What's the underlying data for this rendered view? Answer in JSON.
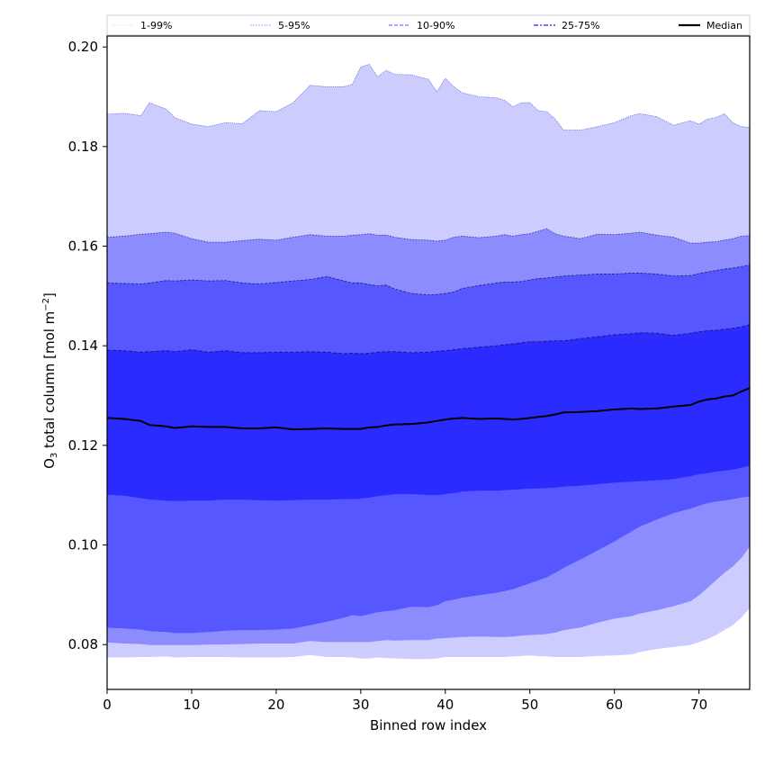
{
  "chart_data": {
    "type": "area",
    "title": "",
    "xlabel": "Binned row index",
    "ylabel_main": "O",
    "ylabel_sub": "3",
    "ylabel_rest": " total column [mol m",
    "ylabel_sup": "−2",
    "ylabel_end": "]",
    "xlim": [
      0,
      76
    ],
    "ylim": [
      0.071,
      0.2022
    ],
    "xticks": [
      0,
      10,
      20,
      30,
      40,
      50,
      60,
      70
    ],
    "xtick_labels": [
      "0",
      "10",
      "20",
      "30",
      "40",
      "50",
      "60",
      "70"
    ],
    "yticks": [
      0.08,
      0.1,
      0.12,
      0.14,
      0.16,
      0.18,
      0.2
    ],
    "ytick_labels": [
      "0.08",
      "0.10",
      "0.12",
      "0.14",
      "0.16",
      "0.18",
      "0.20"
    ],
    "grid": false,
    "legend_placement": "top, above axes, single row",
    "legend": [
      {
        "label": "1-99%",
        "color": "#ccccff",
        "style": "dotted"
      },
      {
        "label": "5-95%",
        "color": "#8c8cff",
        "style": "dashed-fine"
      },
      {
        "label": "10-90%",
        "color": "#7a7aff",
        "style": "dashed"
      },
      {
        "label": "25-75%",
        "color": "#4545ff",
        "style": "dashdot"
      },
      {
        "label": "Median",
        "color": "#000000",
        "style": "solid"
      }
    ],
    "x": [
      0,
      2,
      4,
      5,
      7,
      8,
      10,
      12,
      14,
      16,
      18,
      20,
      22,
      24,
      26,
      28,
      29,
      30,
      31,
      32,
      33,
      34,
      36,
      38,
      39,
      40,
      41,
      42,
      44,
      46,
      47,
      48,
      49,
      50,
      51,
      52,
      53,
      54,
      56,
      58,
      60,
      62,
      63,
      65,
      67,
      69,
      70,
      71,
      72,
      73,
      74,
      75,
      76
    ],
    "bands": [
      {
        "name": "1-99%",
        "fill": "#ccccff",
        "edge": "#4a4ad6",
        "upper": [
          0.1865,
          0.1867,
          0.1862,
          0.1888,
          0.1875,
          0.1858,
          0.1845,
          0.184,
          0.1848,
          0.1846,
          0.1872,
          0.187,
          0.1888,
          0.1923,
          0.192,
          0.192,
          0.1925,
          0.196,
          0.1965,
          0.194,
          0.1953,
          0.1945,
          0.1944,
          0.1935,
          0.191,
          0.1937,
          0.192,
          0.1908,
          0.19,
          0.1898,
          0.1893,
          0.188,
          0.1888,
          0.1888,
          0.1872,
          0.187,
          0.1855,
          0.1833,
          0.1833,
          0.184,
          0.1848,
          0.1862,
          0.1866,
          0.186,
          0.1843,
          0.1852,
          0.1845,
          0.1855,
          0.1858,
          0.1866,
          0.1848,
          0.184,
          0.1838
        ],
        "lower": [
          0.0775,
          0.0775,
          0.0776,
          0.0776,
          0.0777,
          0.0775,
          0.0776,
          0.0776,
          0.0776,
          0.0775,
          0.0775,
          0.0775,
          0.0776,
          0.078,
          0.0776,
          0.0776,
          0.0775,
          0.0773,
          0.0773,
          0.0775,
          0.0774,
          0.0773,
          0.0772,
          0.0772,
          0.0773,
          0.0776,
          0.0776,
          0.0776,
          0.0776,
          0.0776,
          0.0776,
          0.0777,
          0.0778,
          0.0779,
          0.0778,
          0.0777,
          0.0776,
          0.0776,
          0.0776,
          0.0778,
          0.0779,
          0.0781,
          0.0786,
          0.0792,
          0.0796,
          0.08,
          0.0806,
          0.0812,
          0.082,
          0.083,
          0.084,
          0.0855,
          0.0875
        ]
      },
      {
        "name": "5-95%",
        "fill": "#8c8cff",
        "edge": "#2a2ab0",
        "upper": [
          0.1618,
          0.162,
          0.1624,
          0.1625,
          0.1628,
          0.1626,
          0.1615,
          0.1608,
          0.1608,
          0.1611,
          0.1614,
          0.1612,
          0.1618,
          0.1623,
          0.162,
          0.162,
          0.1622,
          0.1623,
          0.1625,
          0.1622,
          0.1622,
          0.1618,
          0.1613,
          0.1612,
          0.161,
          0.1612,
          0.1618,
          0.162,
          0.1617,
          0.162,
          0.1623,
          0.162,
          0.1623,
          0.1625,
          0.163,
          0.1635,
          0.1625,
          0.162,
          0.1615,
          0.1624,
          0.1623,
          0.1626,
          0.1628,
          0.1622,
          0.1618,
          0.1606,
          0.1606,
          0.1608,
          0.1609,
          0.1612,
          0.1615,
          0.162,
          0.1621
        ],
        "lower": [
          0.0805,
          0.0803,
          0.0802,
          0.08,
          0.08,
          0.08,
          0.08,
          0.0801,
          0.0801,
          0.0802,
          0.0803,
          0.0803,
          0.0803,
          0.0808,
          0.0806,
          0.0806,
          0.0806,
          0.0806,
          0.0806,
          0.0808,
          0.081,
          0.0809,
          0.081,
          0.081,
          0.0813,
          0.0814,
          0.0815,
          0.0816,
          0.0817,
          0.0816,
          0.0816,
          0.0817,
          0.0819,
          0.082,
          0.0821,
          0.0822,
          0.0825,
          0.083,
          0.0835,
          0.0845,
          0.0853,
          0.0858,
          0.0863,
          0.087,
          0.0878,
          0.0888,
          0.09,
          0.0915,
          0.093,
          0.0945,
          0.0958,
          0.0975,
          0.0998
        ]
      },
      {
        "name": "10-90%",
        "fill": "#5757ff",
        "edge": "#1a1a80",
        "upper": [
          0.1526,
          0.1525,
          0.1524,
          0.1526,
          0.1531,
          0.153,
          0.1532,
          0.153,
          0.1531,
          0.1526,
          0.1524,
          0.1527,
          0.153,
          0.1533,
          0.1539,
          0.153,
          0.1526,
          0.1526,
          0.1523,
          0.152,
          0.1522,
          0.1514,
          0.1505,
          0.1502,
          0.1503,
          0.1505,
          0.1508,
          0.1515,
          0.1521,
          0.1526,
          0.1528,
          0.1528,
          0.1529,
          0.1532,
          0.1535,
          0.1536,
          0.1538,
          0.154,
          0.1542,
          0.1544,
          0.1544,
          0.1546,
          0.1546,
          0.1544,
          0.154,
          0.1541,
          0.1545,
          0.1548,
          0.1551,
          0.1554,
          0.1556,
          0.1559,
          0.1562
        ],
        "lower": [
          0.0835,
          0.0833,
          0.0831,
          0.0828,
          0.0826,
          0.0824,
          0.0824,
          0.0826,
          0.0829,
          0.083,
          0.083,
          0.0831,
          0.0833,
          0.084,
          0.0847,
          0.0855,
          0.086,
          0.0858,
          0.0862,
          0.0866,
          0.0868,
          0.087,
          0.0877,
          0.0876,
          0.088,
          0.0888,
          0.0891,
          0.0895,
          0.09,
          0.0905,
          0.0908,
          0.0912,
          0.0918,
          0.0924,
          0.093,
          0.0936,
          0.0945,
          0.0955,
          0.0972,
          0.099,
          0.1008,
          0.1028,
          0.1038,
          0.1052,
          0.1065,
          0.1074,
          0.108,
          0.1085,
          0.1088,
          0.109,
          0.1093,
          0.1096,
          0.1098
        ]
      },
      {
        "name": "25-75%",
        "fill": "#2b2bff",
        "edge": "#12127a",
        "upper": [
          0.1391,
          0.139,
          0.1387,
          0.1388,
          0.139,
          0.1388,
          0.1392,
          0.1387,
          0.139,
          0.1386,
          0.1386,
          0.1387,
          0.1387,
          0.1388,
          0.1387,
          0.1384,
          0.1385,
          0.1384,
          0.1385,
          0.1387,
          0.1388,
          0.1388,
          0.1386,
          0.1387,
          0.1389,
          0.139,
          0.1392,
          0.1394,
          0.1397,
          0.14,
          0.1402,
          0.1404,
          0.1406,
          0.1408,
          0.1408,
          0.1409,
          0.141,
          0.141,
          0.1414,
          0.1418,
          0.1422,
          0.1424,
          0.1426,
          0.1425,
          0.1421,
          0.1425,
          0.1428,
          0.143,
          0.1431,
          0.1433,
          0.1435,
          0.1438,
          0.1442
        ],
        "lower": [
          0.1102,
          0.11,
          0.1095,
          0.1092,
          0.109,
          0.1089,
          0.109,
          0.109,
          0.1092,
          0.1092,
          0.1091,
          0.109,
          0.1091,
          0.1092,
          0.1092,
          0.1093,
          0.1093,
          0.1094,
          0.1096,
          0.1099,
          0.1101,
          0.1103,
          0.1103,
          0.1101,
          0.1101,
          0.1103,
          0.1105,
          0.1108,
          0.111,
          0.111,
          0.1111,
          0.1112,
          0.1113,
          0.1114,
          0.1114,
          0.1115,
          0.1116,
          0.1118,
          0.112,
          0.1123,
          0.1126,
          0.1128,
          0.1129,
          0.1131,
          0.1133,
          0.1139,
          0.1143,
          0.1145,
          0.1148,
          0.115,
          0.1152,
          0.1156,
          0.116
        ]
      }
    ],
    "series": [
      {
        "name": "Median",
        "color": "#000000",
        "values": [
          0.1255,
          0.1253,
          0.1249,
          0.1241,
          0.1238,
          0.1235,
          0.1238,
          0.1237,
          0.1237,
          0.1234,
          0.1234,
          0.1236,
          0.1232,
          0.1233,
          0.1234,
          0.1233,
          0.1233,
          0.1233,
          0.1236,
          0.1237,
          0.124,
          0.1242,
          0.1243,
          0.1246,
          0.1249,
          0.1252,
          0.1254,
          0.1255,
          0.1253,
          0.1254,
          0.1253,
          0.1252,
          0.1253,
          0.1255,
          0.1257,
          0.1259,
          0.1262,
          0.1266,
          0.1267,
          0.1269,
          0.1272,
          0.1274,
          0.1273,
          0.1274,
          0.1278,
          0.1281,
          0.1288,
          0.1292,
          0.1294,
          0.1298,
          0.13,
          0.1308,
          0.1315
        ]
      }
    ]
  }
}
